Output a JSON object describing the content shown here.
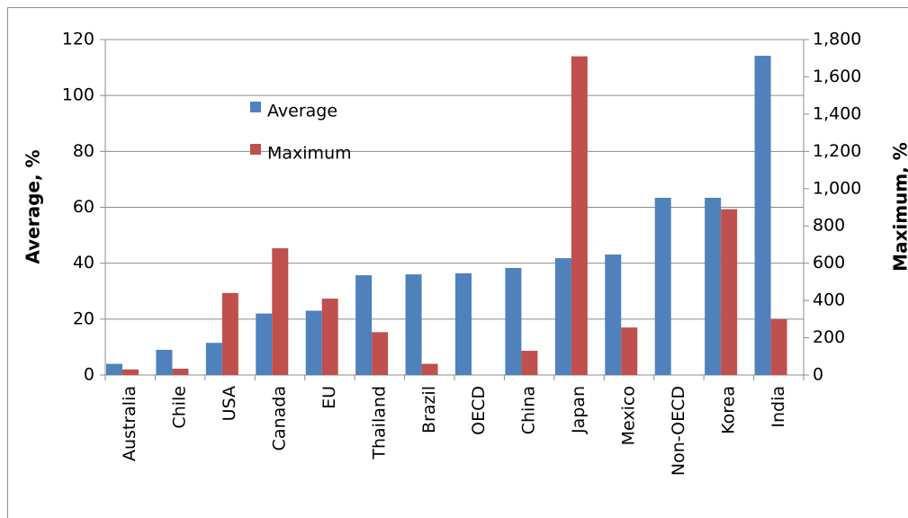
{
  "chart_data": {
    "type": "bar",
    "y_axis_label": "Average, %",
    "y2_axis_label": "Maximum, %",
    "categories": [
      "Australia",
      "Chile",
      "USA",
      "Canada",
      "EU",
      "Thailand",
      "Brazil",
      "OECD",
      "China",
      "Japan",
      "Mexico",
      "Non-OECD",
      "Korea",
      "India"
    ],
    "series": [
      {
        "name": "Average",
        "color": "#4f81bd",
        "values": [
          4,
          9,
          11.5,
          22,
          23,
          35.7,
          36,
          36.4,
          38.3,
          41.8,
          43.1,
          63.4,
          63.4,
          114.2
        ]
      },
      {
        "name": "Maximum",
        "color": "#c0504d",
        "axis": "y2",
        "values": [
          30,
          34,
          440,
          680,
          410,
          230,
          60,
          null,
          130,
          1710,
          255,
          null,
          890,
          300
        ]
      }
    ],
    "ylim": [
      0,
      120
    ],
    "yticks": [
      0,
      20,
      40,
      60,
      80,
      100,
      120
    ],
    "y2lim": [
      0,
      1800
    ],
    "y2ticks": [
      0,
      200,
      400,
      600,
      800,
      {
        "value": 1000,
        "label": "1,000"
      },
      {
        "value": 1200,
        "label": "1,200"
      },
      {
        "value": 1400,
        "label": "1,400"
      },
      {
        "value": 1600,
        "label": "1,600"
      },
      {
        "value": 1800,
        "label": "1,800"
      }
    ],
    "grid": true,
    "legend": "upper left"
  }
}
